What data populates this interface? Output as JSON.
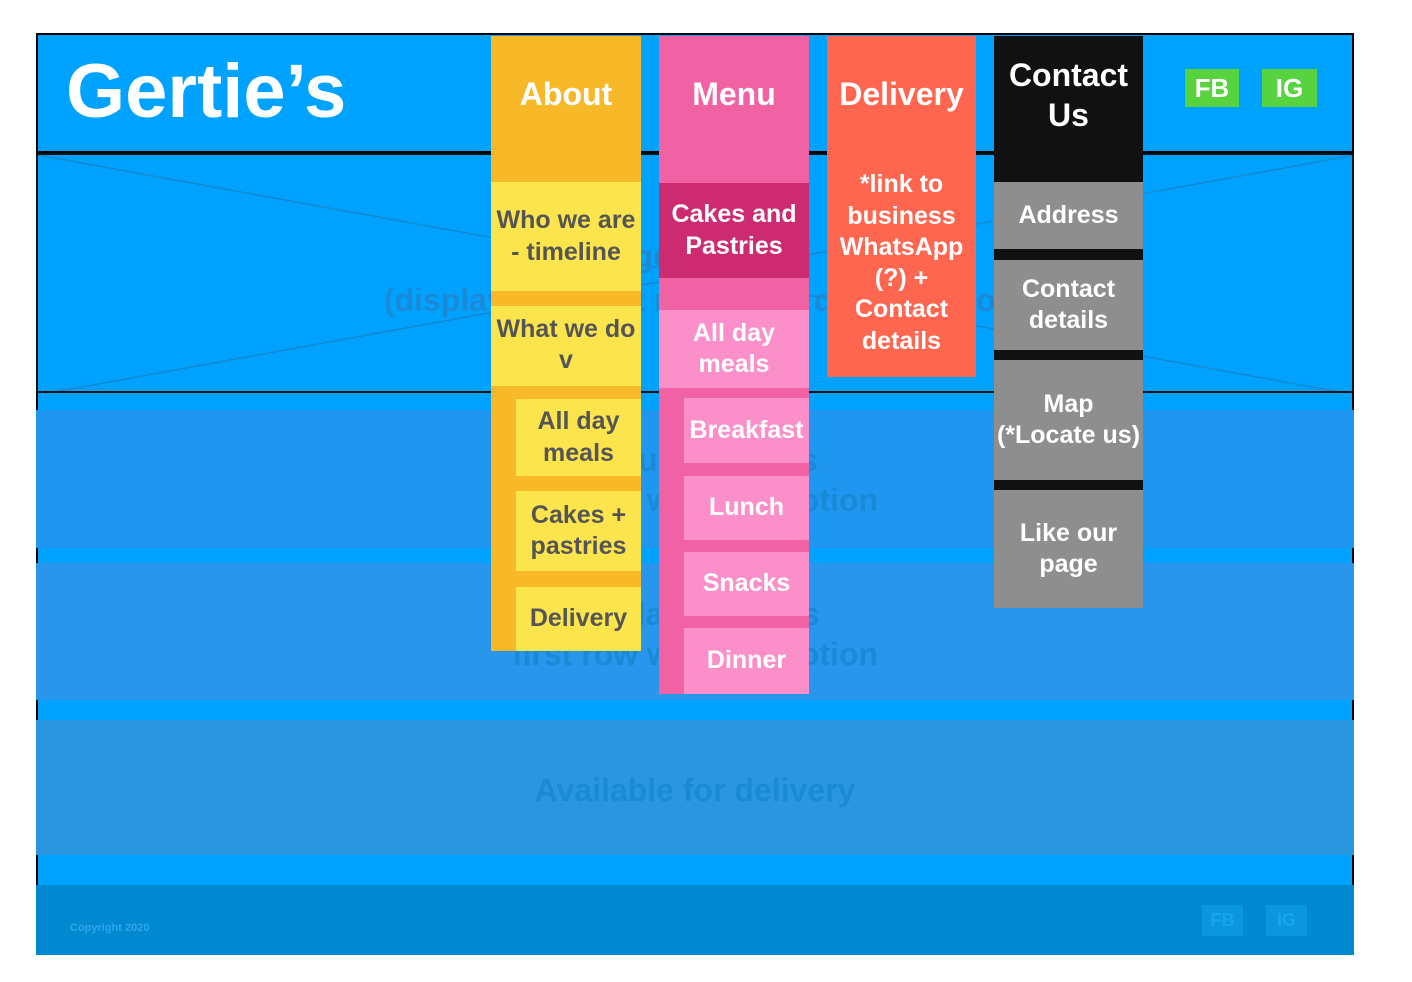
{
  "header": {
    "logo": "Gertie’s",
    "social": [
      "FB",
      "IG"
    ]
  },
  "hero": {
    "title": "Image carousel",
    "subtitle": "(displaying latest menu and daily promo)"
  },
  "sections": [
    {
      "title": "Featured dishes",
      "subtitle": "first row with promotion"
    },
    {
      "title": "Available dishes",
      "subtitle": "first row with promotion"
    },
    {
      "title": "Available for delivery"
    }
  ],
  "footer": {
    "copyright": "Copyright 2020",
    "social": [
      "FB",
      "IG"
    ]
  },
  "nav": {
    "about": {
      "label": "About",
      "items": [
        "Who we are\n- timeline",
        "What we do\nv"
      ],
      "subitems": [
        "All day meals",
        "Cakes + pastries",
        "Delivery"
      ]
    },
    "menu": {
      "label": "Menu",
      "items": [
        "Cakes and Pastries",
        "All day meals"
      ],
      "subitems": [
        "Breakfast",
        "Lunch",
        "Snacks",
        "Dinner"
      ]
    },
    "delivery": {
      "label": "Delivery",
      "note": "*link to business WhatsApp (?) + Contact details"
    },
    "contact": {
      "label": "Contact Us",
      "items": [
        "Address",
        "Contact details",
        "Map (*Locate us)",
        "Like our page"
      ]
    }
  }
}
